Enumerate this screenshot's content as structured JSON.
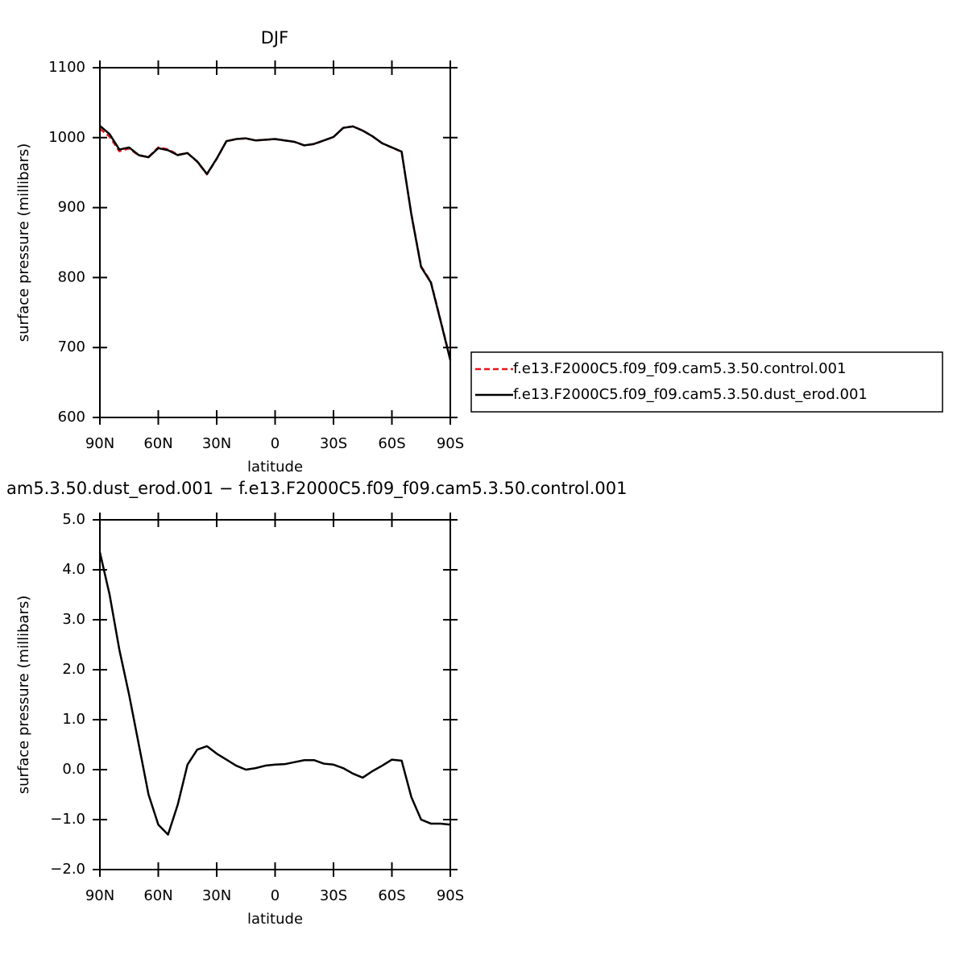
{
  "chart_data": [
    {
      "type": "line",
      "title": "DJF",
      "xlabel": "latitude",
      "ylabel": "surface pressure (millibars)",
      "x": [
        90,
        85,
        80,
        75,
        70,
        65,
        60,
        55,
        50,
        45,
        40,
        35,
        30,
        25,
        20,
        15,
        10,
        5,
        0,
        -5,
        -10,
        -15,
        -20,
        -25,
        -30,
        -35,
        -40,
        -45,
        -50,
        -55,
        -60,
        -65,
        -70,
        -75,
        -80,
        -85,
        -90
      ],
      "series": [
        {
          "name": "f.e13.F2000C5.f09_f09.cam5.3.50.control.001",
          "color": "#e8141a",
          "linestyle": "dashed",
          "values": [
            1012.7,
            1001.5,
            980.6,
            984.5,
            974.5,
            972.5,
            986.1,
            983.3,
            975.7,
            977.9,
            965.6,
            947.5,
            969.7,
            994.8,
            997.9,
            999,
            996,
            996.9,
            997.9,
            995.9,
            993.9,
            988.8,
            990.8,
            995.9,
            1000.9,
            1014,
            1016.1,
            1010.2,
            1002,
            991.9,
            985.8,
            979.8,
            890.6,
            816,
            794.1,
            739.1,
            683.1
          ]
        },
        {
          "name": "f.e13.F2000C5.f09_f09.cam5.3.50.dust_erod.001",
          "color": "#000000",
          "linestyle": "solid",
          "values": [
            1017,
            1005,
            983,
            986,
            975,
            972,
            985,
            982,
            975,
            978,
            966,
            948,
            970,
            995,
            998,
            999,
            996,
            997,
            998,
            996,
            994,
            989,
            991,
            996,
            1001,
            1014,
            1016,
            1010,
            1002,
            992,
            986,
            980,
            890,
            815,
            793,
            738,
            682
          ]
        }
      ],
      "xlim": [
        90,
        -90
      ],
      "xticks": [
        {
          "value": 90,
          "label": "90N"
        },
        {
          "value": 60,
          "label": "60N"
        },
        {
          "value": 30,
          "label": "30N"
        },
        0,
        {
          "value": -30,
          "label": "30S"
        },
        {
          "value": -60,
          "label": "60S"
        },
        {
          "value": -90,
          "label": "90S"
        }
      ],
      "ylim": [
        600,
        1100
      ],
      "yticks": [
        600,
        700,
        800,
        900,
        1000,
        1100
      ],
      "legend": "outside right"
    },
    {
      "type": "line",
      "title": "am5.3.50.dust_erod.001 − f.e13.F2000C5.f09_f09.cam5.3.50.control.001",
      "xlabel": "latitude",
      "ylabel": "surface pressure (millibars)",
      "x": [
        90,
        85,
        80,
        75,
        70,
        65,
        60,
        55,
        50,
        45,
        40,
        35,
        30,
        25,
        20,
        15,
        10,
        5,
        0,
        -5,
        -10,
        -15,
        -20,
        -25,
        -30,
        -35,
        -40,
        -45,
        -50,
        -55,
        -60,
        -65,
        -70,
        -75,
        -80,
        -85,
        -90
      ],
      "series": [
        {
          "color": "#000000",
          "linestyle": "solid",
          "values": [
            4.35,
            3.5,
            2.4,
            1.5,
            0.5,
            -0.5,
            -1.1,
            -1.3,
            -0.7,
            0.1,
            0.4,
            0.47,
            0.32,
            0.2,
            0.08,
            0.0,
            0.03,
            0.08,
            0.1,
            0.11,
            0.15,
            0.19,
            0.19,
            0.12,
            0.1,
            0.03,
            -0.08,
            -0.16,
            -0.03,
            0.08,
            0.2,
            0.18,
            -0.55,
            -1.0,
            -1.08,
            -1.08,
            -1.1
          ]
        }
      ],
      "xlim": [
        90,
        -90
      ],
      "xticks": [
        {
          "value": 90,
          "label": "90N"
        },
        {
          "value": 60,
          "label": "60N"
        },
        {
          "value": 30,
          "label": "30N"
        },
        0,
        {
          "value": -30,
          "label": "30S"
        },
        {
          "value": -60,
          "label": "60S"
        },
        {
          "value": -90,
          "label": "90S"
        }
      ],
      "ylim": [
        -2,
        5
      ],
      "yticks": [
        {
          "value": -2,
          "label": "−2.0"
        },
        {
          "value": -1,
          "label": "−1.0"
        },
        {
          "value": 0,
          "label": "0.0"
        },
        {
          "value": 1,
          "label": "1.0"
        },
        {
          "value": 2,
          "label": "2.0"
        },
        {
          "value": 3,
          "label": "3.0"
        },
        {
          "value": 4,
          "label": "4.0"
        },
        {
          "value": 5,
          "label": "5.0"
        }
      ]
    }
  ]
}
